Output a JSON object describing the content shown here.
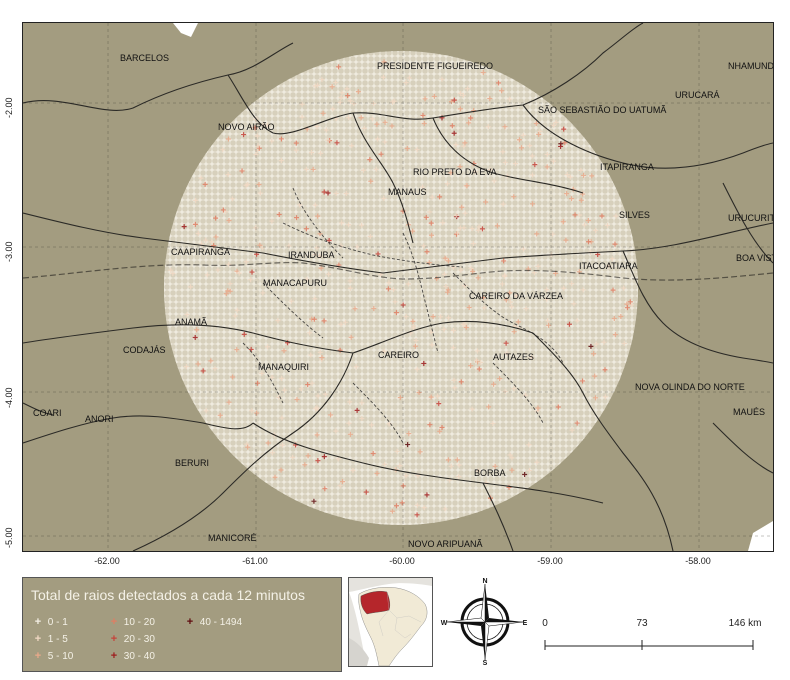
{
  "map": {
    "place_labels": [
      {
        "name": "BARCELOS"
      },
      {
        "name": "PRESIDENTE FIGUEIREDO"
      },
      {
        "name": "NHAMUNDÁ"
      },
      {
        "name": "URUCARÁ"
      },
      {
        "name": "SÃO SEBASTIÃO DO UATUMÃ"
      },
      {
        "name": "NOVO AIRÃO"
      },
      {
        "name": "ITAPIRANGA"
      },
      {
        "name": "RIO PRETO DA EVA"
      },
      {
        "name": "MANAUS"
      },
      {
        "name": "SILVES"
      },
      {
        "name": "URUCURITUBA"
      },
      {
        "name": "CAAPIRANGA"
      },
      {
        "name": "IRANDUBA"
      },
      {
        "name": "ITACOATIARA"
      },
      {
        "name": "BOA VISTA DO RAMOS"
      },
      {
        "name": "MANACAPURU"
      },
      {
        "name": "CAREIRO DA VÁRZEA"
      },
      {
        "name": "ANAMÃ"
      },
      {
        "name": "CODAJÁS"
      },
      {
        "name": "CAREIRO"
      },
      {
        "name": "AUTAZES"
      },
      {
        "name": "MANAQUIRI"
      },
      {
        "name": "NOVA OLINDA DO NORTE"
      },
      {
        "name": "COARI"
      },
      {
        "name": "ANORI"
      },
      {
        "name": "MAUÉS"
      },
      {
        "name": "BERURI"
      },
      {
        "name": "BORBA"
      },
      {
        "name": "MANICORÉ"
      },
      {
        "name": "NOVO ARIPUANÃ"
      }
    ],
    "x_ticks": [
      "-62.00",
      "-61.00",
      "-60.00",
      "-59.00",
      "-58.00"
    ],
    "y_ticks": [
      "-2.00",
      "-3.00",
      "-4.00",
      "-5.00"
    ]
  },
  "legend": {
    "title": "Total de raios detectados a cada 12 minutos",
    "items": [
      {
        "label": "0 - 1",
        "color": "#f4efe4"
      },
      {
        "label": "1 - 5",
        "color": "#f1d9c4"
      },
      {
        "label": "5 - 10",
        "color": "#e9a98a"
      },
      {
        "label": "10 - 20",
        "color": "#e07e63"
      },
      {
        "label": "20 - 30",
        "color": "#c6433a"
      },
      {
        "label": "30 - 40",
        "color": "#9e1b1d"
      },
      {
        "label": "40 - 1494",
        "color": "#5e0a0d"
      }
    ]
  },
  "compass": {
    "n": "N",
    "s": "S",
    "e": "E",
    "w": "W"
  },
  "scale_bar": {
    "labels": [
      "0",
      "73",
      "146 km"
    ]
  },
  "colors": {
    "land": "#a39c80",
    "boundary": "#2b2a26",
    "coverage": "#f4efe4",
    "highlight_state": "#b5262b"
  }
}
